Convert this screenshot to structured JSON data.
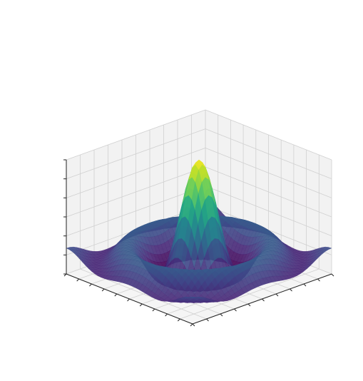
{
  "chart_data": {
    "type": "surface3d",
    "title": "",
    "xlabel": "",
    "ylabel": "",
    "zlabel": "",
    "colormap": "viridis",
    "colormap_stops": [
      "#440154",
      "#482878",
      "#3e4989",
      "#31688e",
      "#26828e",
      "#1f9e89",
      "#35b779",
      "#6ece58",
      "#b5de2b",
      "#fde725"
    ],
    "pane_color": "#f2f2f2",
    "grid_color": "#d0d0d0",
    "grid": true,
    "show_tick_labels": false,
    "x_range": [
      -10,
      10
    ],
    "y_range": [
      -10,
      10
    ],
    "z_range": [
      -0.2,
      1.0
    ],
    "surface": {
      "function": "sin(r)/r",
      "peak_value": 1.0,
      "grid_points": 40
    }
  }
}
